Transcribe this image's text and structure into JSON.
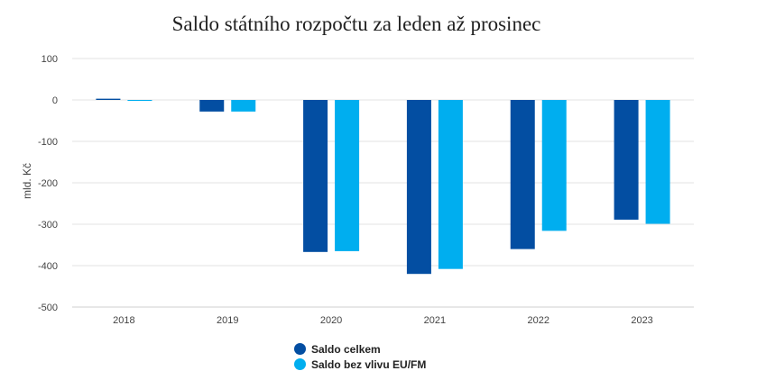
{
  "chart_data": {
    "type": "bar",
    "title": "Saldo státního rozpočtu za leden až prosinec",
    "ylabel": "mld. Kč",
    "xlabel": "",
    "categories": [
      "2018",
      "2019",
      "2020",
      "2021",
      "2022",
      "2023"
    ],
    "series": [
      {
        "name": "Saldo celkem",
        "color": "#034ea2",
        "values": [
          3,
          -28,
          -367,
          -420,
          -360,
          -289
        ]
      },
      {
        "name": "Saldo bez vlivu EU/FM",
        "color": "#00aeef",
        "values": [
          -2,
          -28,
          -365,
          -408,
          -316,
          -299
        ]
      }
    ],
    "ylim": [
      -500,
      100
    ],
    "yticks": [
      100,
      0,
      -100,
      -200,
      -300,
      -400,
      -500
    ],
    "grid": true,
    "legend_position": "bottom"
  }
}
